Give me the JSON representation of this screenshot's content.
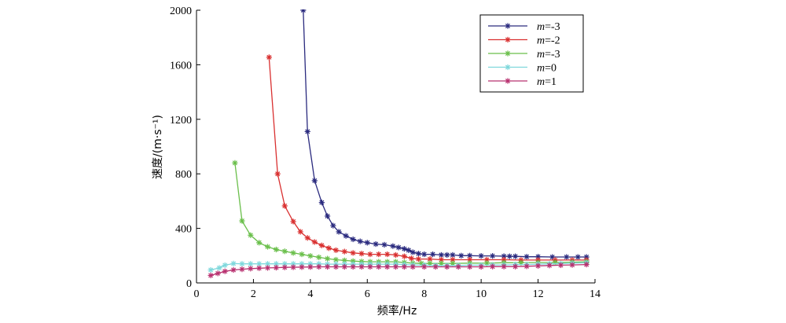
{
  "chart_data": {
    "type": "line",
    "xlabel": "频率/Hz",
    "ylabel": "速度/(m·s⁻¹)",
    "xlim": [
      0,
      14
    ],
    "ylim": [
      0,
      2000
    ],
    "xticks": [
      "0",
      "2",
      "4",
      "6",
      "8",
      "10",
      "12",
      "14"
    ],
    "yticks": [
      "0",
      "400",
      "800",
      "1200",
      "1600",
      "2000"
    ],
    "grid": false,
    "legend_position": "top-right",
    "series": [
      {
        "name": "m=-3",
        "legend_italic": "m",
        "legend_rest": "=-3",
        "color": "#2a2a7e",
        "x": [
          3.75,
          3.9,
          4.15,
          4.4,
          4.6,
          4.8,
          5.0,
          5.25,
          5.5,
          5.75,
          6.0,
          6.3,
          6.6,
          6.9,
          7.1,
          7.3,
          7.45,
          7.6,
          7.8,
          8.0,
          8.3,
          8.6,
          8.8,
          9.0,
          9.3,
          9.6,
          10.0,
          10.4,
          10.8,
          11.0,
          11.2,
          11.6,
          12.0,
          12.5,
          13.0,
          13.4,
          13.7
        ],
        "y": [
          2000,
          1110,
          750,
          590,
          490,
          420,
          375,
          345,
          320,
          305,
          295,
          285,
          280,
          270,
          260,
          250,
          240,
          225,
          215,
          210,
          210,
          205,
          205,
          205,
          200,
          200,
          198,
          198,
          196,
          195,
          195,
          192,
          192,
          190,
          190,
          190,
          190
        ]
      },
      {
        "name": "m=-2",
        "legend_italic": "m",
        "legend_rest": "=-2",
        "color": "#d93030",
        "x": [
          2.55,
          2.85,
          3.1,
          3.4,
          3.65,
          3.9,
          4.15,
          4.4,
          4.65,
          4.9,
          5.2,
          5.5,
          5.8,
          6.1,
          6.4,
          6.7,
          7.0,
          7.3,
          7.55,
          7.8,
          8.2,
          8.6,
          9.0,
          9.6,
          10.2,
          10.8,
          11.4,
          12.0,
          12.6,
          13.2,
          13.7
        ],
        "y": [
          1655,
          800,
          565,
          450,
          375,
          330,
          300,
          275,
          255,
          240,
          230,
          220,
          215,
          210,
          210,
          210,
          205,
          195,
          180,
          175,
          175,
          170,
          170,
          170,
          170,
          170,
          168,
          168,
          168,
          168,
          168
        ]
      },
      {
        "name": "m=-3",
        "legend_italic": "m",
        "legend_rest": "=-3",
        "color": "#6abf4b",
        "x": [
          1.35,
          1.6,
          1.9,
          2.2,
          2.5,
          2.8,
          3.1,
          3.4,
          3.7,
          4.0,
          4.3,
          4.6,
          4.9,
          5.2,
          5.5,
          5.8,
          6.1,
          6.4,
          6.7,
          7.0,
          7.3,
          7.6,
          7.9,
          8.2,
          8.6,
          9.0,
          9.6,
          10.2,
          10.8,
          11.4,
          12.0,
          12.6,
          13.2,
          13.7
        ],
        "y": [
          880,
          455,
          350,
          295,
          265,
          245,
          232,
          220,
          210,
          198,
          188,
          178,
          170,
          165,
          160,
          157,
          155,
          155,
          155,
          155,
          150,
          145,
          143,
          143,
          143,
          143,
          145,
          145,
          148,
          148,
          150,
          150,
          152,
          155
        ]
      },
      {
        "name": "m=0",
        "legend_italic": "m",
        "legend_rest": "=0",
        "color": "#7fd8dc",
        "x": [
          0.5,
          0.8,
          1.0,
          1.3,
          1.6,
          1.9,
          2.2,
          2.5,
          2.8,
          3.1,
          3.4,
          3.7,
          4.0,
          4.3,
          4.6,
          4.9,
          5.2,
          5.5,
          5.8,
          6.1,
          6.4,
          6.7,
          7.0,
          7.3,
          7.6,
          8.0,
          8.4,
          8.8,
          9.2,
          9.6,
          10.0,
          10.4,
          10.8,
          11.2,
          11.6,
          12.0,
          12.4,
          12.8,
          13.2,
          13.7
        ],
        "y": [
          95,
          110,
          130,
          142,
          140,
          140,
          140,
          140,
          140,
          140,
          140,
          140,
          140,
          140,
          138,
          138,
          138,
          138,
          138,
          138,
          138,
          138,
          138,
          135,
          132,
          130,
          128,
          128,
          128,
          130,
          130,
          132,
          132,
          135,
          135,
          138,
          140,
          142,
          145,
          148
        ]
      },
      {
        "name": "m=1",
        "legend_italic": "m",
        "legend_rest": "=1",
        "color": "#b8306f",
        "x": [
          0.5,
          0.75,
          1.0,
          1.3,
          1.6,
          1.9,
          2.2,
          2.5,
          2.8,
          3.1,
          3.4,
          3.7,
          4.0,
          4.3,
          4.6,
          4.9,
          5.2,
          5.5,
          5.8,
          6.1,
          6.4,
          6.7,
          7.0,
          7.3,
          7.6,
          8.0,
          8.4,
          8.8,
          9.2,
          9.6,
          10.0,
          10.4,
          10.8,
          11.2,
          11.6,
          12.0,
          12.4,
          12.8,
          13.2,
          13.7
        ],
        "y": [
          55,
          70,
          85,
          95,
          100,
          105,
          108,
          110,
          112,
          114,
          115,
          116,
          117,
          118,
          118,
          118,
          118,
          118,
          118,
          118,
          118,
          118,
          118,
          118,
          118,
          118,
          118,
          118,
          118,
          118,
          118,
          120,
          120,
          120,
          122,
          125,
          128,
          130,
          132,
          135
        ]
      }
    ]
  }
}
